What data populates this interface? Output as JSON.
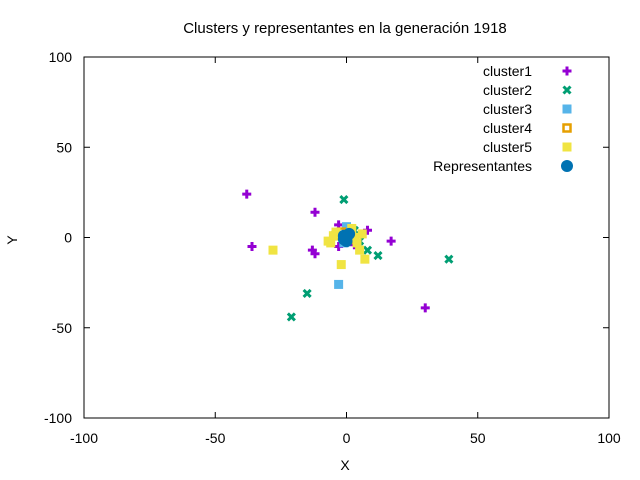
{
  "chart_data": {
    "type": "scatter",
    "title": "Clusters y representantes en la generación 1918",
    "xlabel": "X",
    "ylabel": "Y",
    "xlim": [
      -100,
      100
    ],
    "ylim": [
      -100,
      100
    ],
    "xticks": [
      "-100",
      "-50",
      "0",
      "50",
      "100"
    ],
    "yticks": [
      "100",
      "50",
      "0",
      "-50",
      "-100"
    ],
    "xtick_values": [
      -100,
      -50,
      0,
      50,
      100
    ],
    "ytick_values": [
      100,
      50,
      0,
      -50,
      -100
    ],
    "grid": false,
    "legend_position": "top-right",
    "series": [
      {
        "name": "cluster1",
        "marker": "plus",
        "color": "#9400d3",
        "points": [
          [
            -38,
            24
          ],
          [
            -36,
            -5
          ],
          [
            -12,
            14
          ],
          [
            -13,
            -7
          ],
          [
            -12,
            -9
          ],
          [
            -3,
            7
          ],
          [
            -3,
            -5
          ],
          [
            8,
            4
          ],
          [
            17,
            -2
          ],
          [
            30,
            -39
          ],
          [
            3,
            -4
          ],
          [
            -1,
            -1
          ]
        ]
      },
      {
        "name": "cluster2",
        "marker": "cross",
        "color": "#009e73",
        "points": [
          [
            -1,
            21
          ],
          [
            -15,
            -31
          ],
          [
            -21,
            -44
          ],
          [
            12,
            -10
          ],
          [
            39,
            -12
          ],
          [
            8,
            -7
          ],
          [
            3,
            4
          ],
          [
            5,
            -2
          ],
          [
            -2,
            2
          ]
        ]
      },
      {
        "name": "cluster3",
        "marker": "square",
        "color": "#56b4e9",
        "points": [
          [
            -3,
            -26
          ],
          [
            0,
            6
          ],
          [
            -1,
            -3
          ],
          [
            2,
            1
          ]
        ]
      },
      {
        "name": "cluster4",
        "marker": "square-open",
        "color": "#e69f00",
        "points": [
          [
            -4,
            1
          ],
          [
            -2,
            3
          ],
          [
            1,
            -1
          ]
        ]
      },
      {
        "name": "cluster5",
        "marker": "square",
        "color": "#f0e442",
        "points": [
          [
            -28,
            -7
          ],
          [
            -7,
            -2
          ],
          [
            -2,
            -15
          ],
          [
            -5,
            1
          ],
          [
            5,
            -7
          ],
          [
            7,
            -12
          ],
          [
            6,
            2
          ],
          [
            3,
            0
          ],
          [
            -6,
            -3
          ],
          [
            2,
            5
          ],
          [
            -4,
            3
          ],
          [
            4,
            -3
          ]
        ]
      },
      {
        "name": "Representantes",
        "marker": "circle",
        "color": "#0072b2",
        "points": [
          [
            -1,
            1
          ],
          [
            0,
            0
          ],
          [
            -1,
            -1
          ],
          [
            1,
            2
          ],
          [
            0,
            -2
          ]
        ]
      }
    ]
  }
}
